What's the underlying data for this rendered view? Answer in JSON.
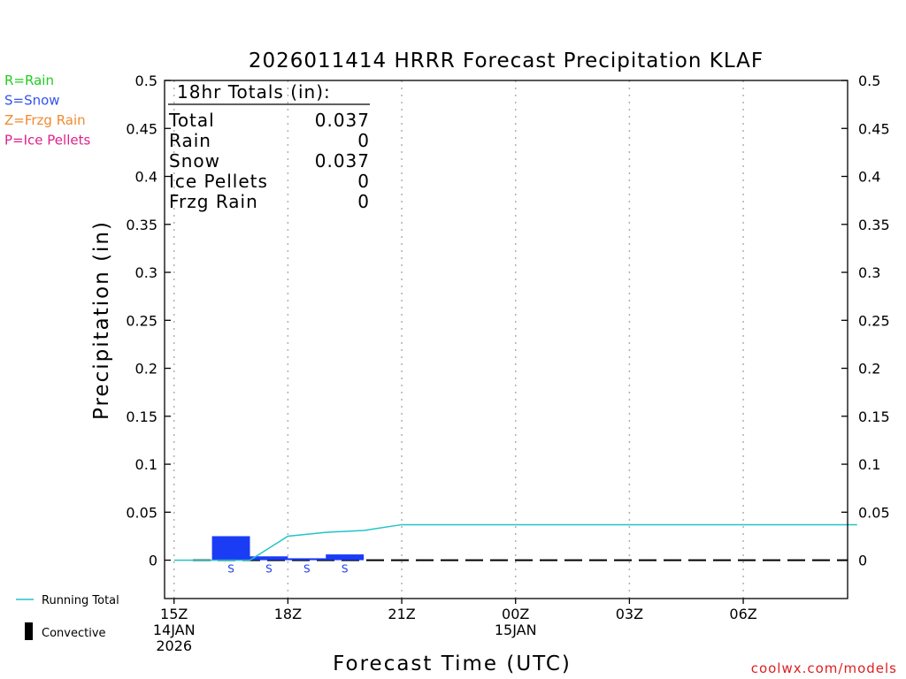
{
  "chart_data": {
    "type": "bar",
    "title": "2026011414 HRRR Forecast Precipitation KLAF",
    "xlabel": "Forecast Time (UTC)",
    "ylabel": "Precipitation (in)",
    "ylim": [
      -0.04,
      0.5
    ],
    "xlim": [
      -0.25,
      17.75
    ],
    "y_ticks": [
      0,
      0.05,
      0.1,
      0.15,
      0.2,
      0.25,
      0.3,
      0.35,
      0.4,
      0.45,
      0.5
    ],
    "y_tick_labels": [
      "0",
      "0.05",
      "0.1",
      "0.15",
      "0.2",
      "0.25",
      "0.3",
      "0.35",
      "0.4",
      "0.45",
      "0.5"
    ],
    "x_ticks": [
      {
        "hour": 0,
        "lines": [
          "15Z",
          "14JAN",
          "2026"
        ]
      },
      {
        "hour": 3,
        "lines": [
          "18Z"
        ]
      },
      {
        "hour": 6,
        "lines": [
          "21Z"
        ]
      },
      {
        "hour": 9,
        "lines": [
          "00Z",
          "15JAN"
        ]
      },
      {
        "hour": 12,
        "lines": [
          "03Z"
        ]
      },
      {
        "hour": 15,
        "lines": [
          "06Z"
        ]
      }
    ],
    "grid": "vertical dotted",
    "bars": [
      {
        "hour": 2,
        "value": 0.025,
        "type_label": "S"
      },
      {
        "hour": 3,
        "value": 0.004,
        "type_label": "S"
      },
      {
        "hour": 4,
        "value": 0.002,
        "type_label": "S"
      },
      {
        "hour": 5,
        "value": 0.006,
        "type_label": "S"
      }
    ],
    "running_total": {
      "name": "Running Total",
      "hours": [
        0,
        1,
        2,
        3,
        4,
        5,
        6,
        7,
        8,
        9,
        10,
        11,
        12,
        13,
        14,
        15,
        16,
        17,
        18
      ],
      "values": [
        0,
        0,
        0,
        0.025,
        0.029,
        0.031,
        0.037,
        0.037,
        0.037,
        0.037,
        0.037,
        0.037,
        0.037,
        0.037,
        0.037,
        0.037,
        0.037,
        0.037,
        0.037
      ]
    },
    "totals_box": {
      "title": "18hr Totals (in):",
      "rows": [
        {
          "label": "Total",
          "value": "0.037"
        },
        {
          "label": "Rain",
          "value": "0"
        },
        {
          "label": "Snow",
          "value": "0.037"
        },
        {
          "label": "Ice Pellets",
          "value": "0"
        },
        {
          "label": "Frzg Rain",
          "value": "0"
        }
      ]
    },
    "type_legend": [
      {
        "text": "R=Rain",
        "color": "#22cc22"
      },
      {
        "text": "S=Snow",
        "color": "#3355ee"
      },
      {
        "text": "Z=Frzg Rain",
        "color": "#f08a30"
      },
      {
        "text": "P=Ice Pellets",
        "color": "#e0208a"
      }
    ],
    "legend": [
      {
        "text": "Running Total",
        "kind": "line",
        "color": "#22c4c8"
      },
      {
        "text": "Convective",
        "kind": "bar",
        "color": "#000000"
      }
    ],
    "credit": "coolwx.com/models",
    "colors": {
      "snow_bar": "#1a3cf5",
      "running_total": "#22c4c8",
      "credit": "#dd2020",
      "grid": "#b0b0b0",
      "axis": "#000000",
      "convective": "#000000"
    }
  }
}
